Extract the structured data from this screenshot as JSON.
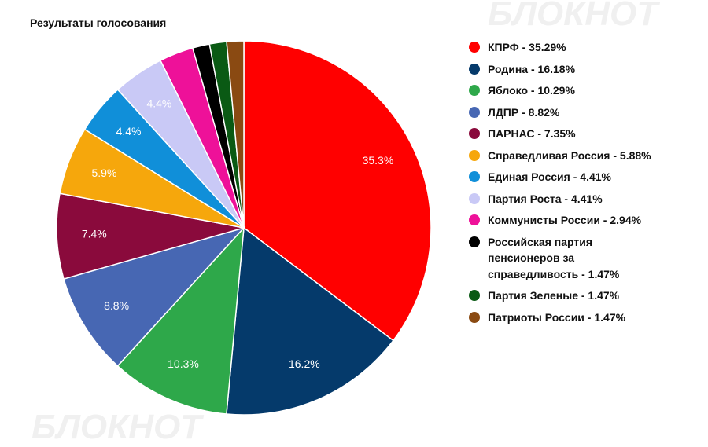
{
  "chart_data": {
    "type": "pie",
    "title": "Результаты голосования",
    "watermark": "БЛОКНОТ",
    "categories": [
      "КПРФ - 35.29%",
      "Родина - 16.18%",
      "Яблоко - 10.29%",
      "ЛДПР - 8.82%",
      "ПАРНАС - 7.35%",
      "Справедливая Россия - 5.88%",
      "Единая Россия - 4.41%",
      "Партия Роста - 4.41%",
      "Коммунисты России - 2.94%",
      "Российская партия\nпенсионеров за\nсправедливость - 1.47%",
      "Партия Зеленые - 1.47%",
      "Патриоты России - 1.47%"
    ],
    "values": [
      35.29,
      16.18,
      10.29,
      8.82,
      7.35,
      5.88,
      4.41,
      4.41,
      2.94,
      1.47,
      1.47,
      1.47
    ],
    "value_labels": [
      "35.3%",
      "16.2%",
      "10.3%",
      "8.8%",
      "7.4%",
      "5.9%",
      "4.4%",
      "4.4%",
      null,
      null,
      null,
      null
    ],
    "colors": [
      "#ff0000",
      "#053a6b",
      "#2ea84a",
      "#4767b3",
      "#8a0a3c",
      "#f6a70c",
      "#108fd9",
      "#c9c9f6",
      "#ee1199",
      "#000000",
      "#0a5a14",
      "#8a4a12"
    ],
    "legend": "right"
  }
}
